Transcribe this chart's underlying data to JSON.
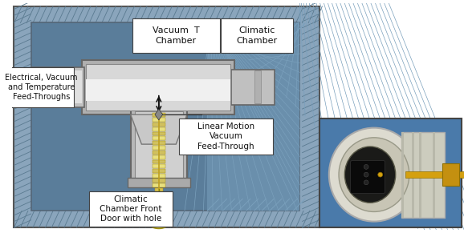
{
  "fig_w": 5.78,
  "fig_h": 2.91,
  "bg_white": "#ffffff",
  "outer_bg": "#8aa5bc",
  "hatch_fill": "#7090a8",
  "inner_panel": "#5a7d9a",
  "inner_panel2": "#6a90ad",
  "tube_gray": "#c8c8c8",
  "tube_light": "#e8e8e8",
  "tube_dark": "#a0a0a0",
  "rod_yellow": "#e8de80",
  "rod_gold": "#c8a820",
  "rod_dark": "#b89010",
  "labels": {
    "vacuum_t": "Vacuum  T\nChamber",
    "climatic": "Climatic\nChamber",
    "electrical": "Electrical, Vacuum\nand Temperature\nFeed-Throughs",
    "linear_motion": "Linear Motion\nVacuum\nFeed-Through",
    "climatic_door": "Climatic\nChamber Front\nDoor with hole"
  },
  "label_fs": 7.5,
  "inset_bg": "#4a7aaa"
}
